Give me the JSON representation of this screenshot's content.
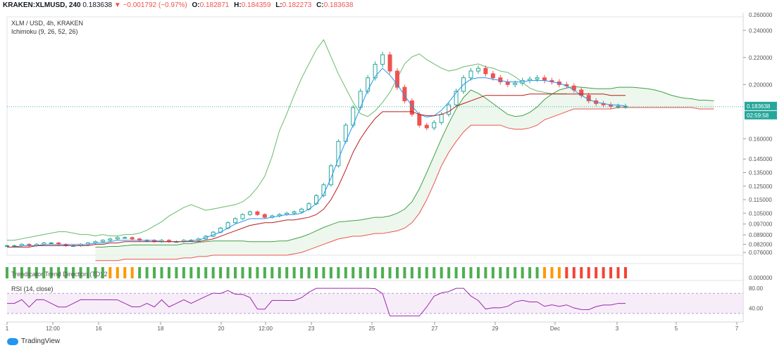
{
  "header": {
    "symbol": "KRAKEN:XLMUSD, 240",
    "price": "0.183638",
    "change": "−0.001792 (−0.97%)",
    "o_label": "O:",
    "o_value": "0.182871",
    "h_label": "H:",
    "h_value": "0.184359",
    "l_label": "L:",
    "l_value": "0.182273",
    "c_label": "C:",
    "c_value": "0.183638"
  },
  "legend": {
    "pair": "XLM / USD, 4h, KRAKEN",
    "ichimoku": "Ichimoku (9, 26, 52, 26)",
    "ttm": "Trendicator Trend Direction (TD) 2",
    "rsi": "RSI (14, close)"
  },
  "footer": {
    "brand": "TradingView"
  },
  "colors": {
    "up": "#26a69a",
    "down": "#ef5350",
    "conversion": "#2196f3",
    "base": "#b71c1c",
    "span_a": "#43a047",
    "span_b": "#ef5350",
    "lagging": "#66bb6a",
    "cloud": "#e8f5e9",
    "rsi": "#9c27b0",
    "rsi_band": "#f3e5f5",
    "ttm_green": "#4caf50",
    "ttm_orange": "#ff9800",
    "ttm_red": "#f44336"
  },
  "chart_data": {
    "type": "line",
    "y_ticks": [
      "0.240000",
      "0.220000",
      "0.200000",
      "0.160000",
      "0.145000",
      "0.135000",
      "0.125000",
      "0.115000",
      "0.105000",
      "0.097000",
      "0.089000",
      "0.082000",
      "0.076000"
    ],
    "y_top_tick": "0.260000",
    "price_label": "0.183638",
    "countdown": "02:59:58",
    "x_ticks": [
      "1",
      "12:00",
      "16",
      "18",
      "20",
      "12:00",
      "23",
      "25",
      "27",
      "29",
      "Dec",
      "3",
      "5",
      "7"
    ],
    "ttm_axis": "0.000000",
    "rsi_ticks": [
      "80.00",
      "40.00"
    ],
    "close_series": [
      0.081,
      0.081,
      0.082,
      0.081,
      0.082,
      0.083,
      0.083,
      0.082,
      0.081,
      0.081,
      0.082,
      0.083,
      0.084,
      0.085,
      0.086,
      0.087,
      0.087,
      0.086,
      0.085,
      0.085,
      0.084,
      0.085,
      0.084,
      0.084,
      0.085,
      0.085,
      0.086,
      0.088,
      0.091,
      0.094,
      0.098,
      0.101,
      0.104,
      0.106,
      0.104,
      0.102,
      0.103,
      0.104,
      0.105,
      0.106,
      0.108,
      0.112,
      0.118,
      0.126,
      0.14,
      0.158,
      0.17,
      0.183,
      0.195,
      0.205,
      0.215,
      0.222,
      0.21,
      0.198,
      0.188,
      0.178,
      0.17,
      0.168,
      0.172,
      0.178,
      0.185,
      0.195,
      0.205,
      0.21,
      0.212,
      0.208,
      0.205,
      0.202,
      0.2,
      0.201,
      0.203,
      0.204,
      0.205,
      0.203,
      0.202,
      0.2,
      0.199,
      0.196,
      0.192,
      0.188,
      0.186,
      0.185,
      0.184,
      0.184,
      0.184
    ],
    "conversion_series": [
      0.08,
      0.08,
      0.081,
      0.081,
      0.081,
      0.082,
      0.082,
      0.082,
      0.082,
      0.082,
      0.082,
      0.082,
      0.083,
      0.083,
      0.084,
      0.085,
      0.085,
      0.085,
      0.085,
      0.085,
      0.085,
      0.084,
      0.084,
      0.084,
      0.084,
      0.085,
      0.085,
      0.087,
      0.089,
      0.091,
      0.094,
      0.097,
      0.099,
      0.101,
      0.101,
      0.101,
      0.102,
      0.103,
      0.104,
      0.104,
      0.105,
      0.108,
      0.112,
      0.119,
      0.131,
      0.145,
      0.158,
      0.17,
      0.183,
      0.196,
      0.206,
      0.212,
      0.207,
      0.2,
      0.192,
      0.184,
      0.178,
      0.176,
      0.177,
      0.181,
      0.187,
      0.194,
      0.2,
      0.204,
      0.205,
      0.205,
      0.204,
      0.203,
      0.202,
      0.202,
      0.202,
      0.203,
      0.203,
      0.203,
      0.202,
      0.201,
      0.199,
      0.196,
      0.192,
      0.189,
      0.187,
      0.186,
      0.185,
      0.185,
      0.184
    ],
    "base_series": [
      0.08,
      0.08,
      0.08,
      0.08,
      0.081,
      0.081,
      0.081,
      0.081,
      0.081,
      0.081,
      0.081,
      0.081,
      0.082,
      0.082,
      0.083,
      0.083,
      0.084,
      0.084,
      0.084,
      0.084,
      0.084,
      0.084,
      0.084,
      0.084,
      0.084,
      0.084,
      0.084,
      0.085,
      0.086,
      0.088,
      0.09,
      0.092,
      0.094,
      0.096,
      0.097,
      0.098,
      0.098,
      0.099,
      0.1,
      0.1,
      0.101,
      0.102,
      0.104,
      0.108,
      0.115,
      0.125,
      0.137,
      0.15,
      0.16,
      0.168,
      0.175,
      0.18,
      0.18,
      0.18,
      0.18,
      0.18,
      0.178,
      0.177,
      0.177,
      0.178,
      0.18,
      0.184,
      0.186,
      0.188,
      0.19,
      0.192,
      0.192,
      0.192,
      0.192,
      0.192,
      0.192,
      0.193,
      0.193,
      0.193,
      0.193,
      0.193,
      0.193,
      0.193,
      0.193,
      0.193,
      0.193,
      0.193,
      0.192,
      0.192,
      0.192
    ]
  }
}
